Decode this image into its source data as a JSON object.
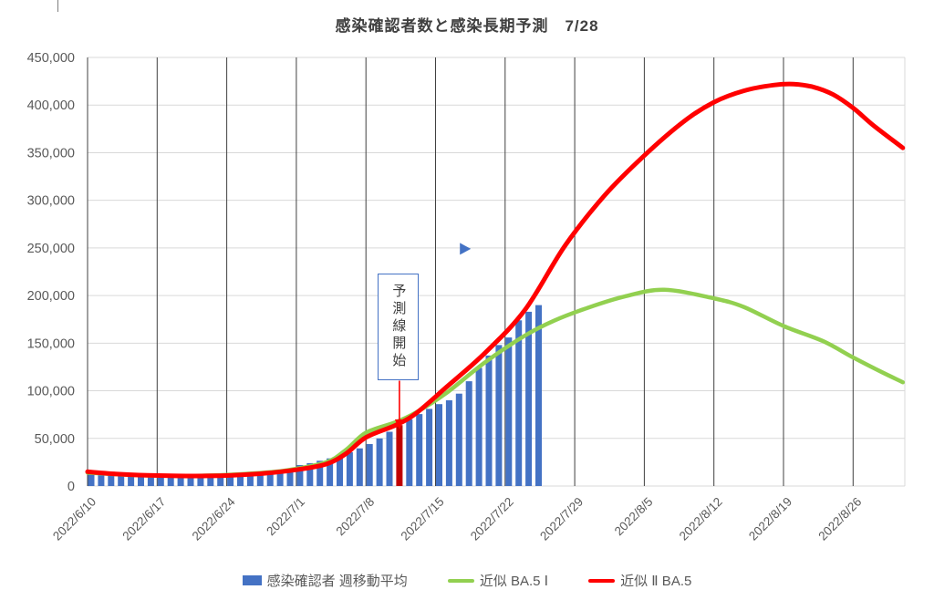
{
  "chart_data": {
    "type": "combo-bar-line",
    "title": "感染確認者数と感染長期予測　7/28",
    "y_axis": {
      "min": 0,
      "max": 450000,
      "step": 50000,
      "tick_labels": [
        "0",
        "50,000",
        "100,000",
        "150,000",
        "200,000",
        "250,000",
        "300,000",
        "350,000",
        "400,000",
        "450,000"
      ]
    },
    "x_axis": {
      "tick_interval_days": 7,
      "tick_labels": [
        "2022/6/10",
        "2022/6/17",
        "2022/6/24",
        "2022/7/1",
        "2022/7/8",
        "2022/7/15",
        "2022/7/22",
        "2022/7/29",
        "2022/8/5",
        "2022/8/12",
        "2022/8/19",
        "2022/8/26"
      ]
    },
    "bars": {
      "name": "感染確認者 週移動平均",
      "color": "#4472C4",
      "highlight_color": "#C00000",
      "highlight_date": "2022/7/11",
      "dates": [
        "2022/6/10",
        "2022/6/11",
        "2022/6/12",
        "2022/6/13",
        "2022/6/14",
        "2022/6/15",
        "2022/6/16",
        "2022/6/17",
        "2022/6/18",
        "2022/6/19",
        "2022/6/20",
        "2022/6/21",
        "2022/6/22",
        "2022/6/23",
        "2022/6/24",
        "2022/6/25",
        "2022/6/26",
        "2022/6/27",
        "2022/6/28",
        "2022/6/29",
        "2022/6/30",
        "2022/7/1",
        "2022/7/2",
        "2022/7/3",
        "2022/7/4",
        "2022/7/5",
        "2022/7/6",
        "2022/7/7",
        "2022/7/8",
        "2022/7/9",
        "2022/7/10",
        "2022/7/11",
        "2022/7/12",
        "2022/7/13",
        "2022/7/14",
        "2022/7/15",
        "2022/7/16",
        "2022/7/17",
        "2022/7/18",
        "2022/7/19",
        "2022/7/20",
        "2022/7/21",
        "2022/7/22",
        "2022/7/23",
        "2022/7/24",
        "2022/7/25"
      ],
      "values": [
        13500,
        13000,
        12400,
        12000,
        11600,
        11300,
        11000,
        10800,
        10700,
        10700,
        10800,
        11000,
        11200,
        11500,
        11900,
        12400,
        13000,
        13700,
        14600,
        15700,
        17000,
        22000,
        24000,
        26500,
        29000,
        32000,
        35500,
        39500,
        44000,
        50000,
        57000,
        64000,
        70000,
        75500,
        81000,
        86000,
        90000,
        97000,
        110000,
        124000,
        137000,
        148000,
        156000,
        174000,
        183000,
        190000
      ]
    },
    "series": [
      {
        "key": "approx-ba5-1",
        "name": "近似 BA.5 Ⅰ",
        "color": "#92D050",
        "stroke_width": 4.5,
        "points": [
          [
            0,
            14000
          ],
          [
            4,
            11800
          ],
          [
            8,
            10800
          ],
          [
            12,
            11000
          ],
          [
            16,
            12800
          ],
          [
            20,
            16500
          ],
          [
            24,
            25000
          ],
          [
            26,
            38000
          ],
          [
            28,
            56000
          ],
          [
            31,
            67000
          ],
          [
            33,
            77000
          ],
          [
            36,
            97000
          ],
          [
            40,
            130000
          ],
          [
            44,
            158000
          ],
          [
            47,
            174000
          ],
          [
            50,
            186000
          ],
          [
            54,
            199000
          ],
          [
            58,
            206000
          ],
          [
            63,
            197000
          ],
          [
            66,
            188000
          ],
          [
            70,
            168000
          ],
          [
            74,
            152000
          ],
          [
            77,
            135000
          ],
          [
            80,
            119000
          ],
          [
            82,
            109000
          ]
        ]
      },
      {
        "key": "approx-2-ba5",
        "name": "近似 Ⅱ BA.5",
        "color": "#FF0000",
        "stroke_width": 5,
        "points": [
          [
            0,
            15000
          ],
          [
            3,
            12500
          ],
          [
            6,
            11200
          ],
          [
            9,
            10600
          ],
          [
            12,
            10600
          ],
          [
            15,
            11500
          ],
          [
            18,
            13500
          ],
          [
            21,
            17000
          ],
          [
            24,
            23000
          ],
          [
            26,
            34000
          ],
          [
            28,
            51000
          ],
          [
            31,
            64000
          ],
          [
            33,
            76000
          ],
          [
            36,
            103000
          ],
          [
            40,
            140000
          ],
          [
            44,
            185000
          ],
          [
            48,
            252000
          ],
          [
            52,
            305000
          ],
          [
            56,
            347000
          ],
          [
            60,
            383000
          ],
          [
            63,
            403000
          ],
          [
            66,
            415000
          ],
          [
            69,
            421000
          ],
          [
            71,
            422000
          ],
          [
            73,
            419000
          ],
          [
            75,
            411000
          ],
          [
            77,
            397000
          ],
          [
            79,
            379000
          ],
          [
            82,
            355000
          ]
        ]
      }
    ],
    "annotation": {
      "text": "予測線開始",
      "points_to_date": "2022/7/11",
      "points_to_day": 31,
      "arrow_color": "#FF0000",
      "box_border_color": "#4472C4"
    },
    "marker": {
      "shape": "right-triangle",
      "color": "#4472C4",
      "day": 38,
      "value": 249000
    },
    "legend": [
      {
        "label": "感染確認者 週移動平均",
        "swatch": "bar",
        "color": "#4472C4"
      },
      {
        "label": "近似 BA.5 Ⅰ",
        "swatch": "line",
        "color": "#92D050"
      },
      {
        "label": "近似 Ⅱ BA.5",
        "swatch": "line",
        "color": "#FF0000"
      }
    ],
    "grid": {
      "vertical_color": "#404040",
      "horizontal_color": "#D9D9D9"
    },
    "text_color": "#595959"
  }
}
